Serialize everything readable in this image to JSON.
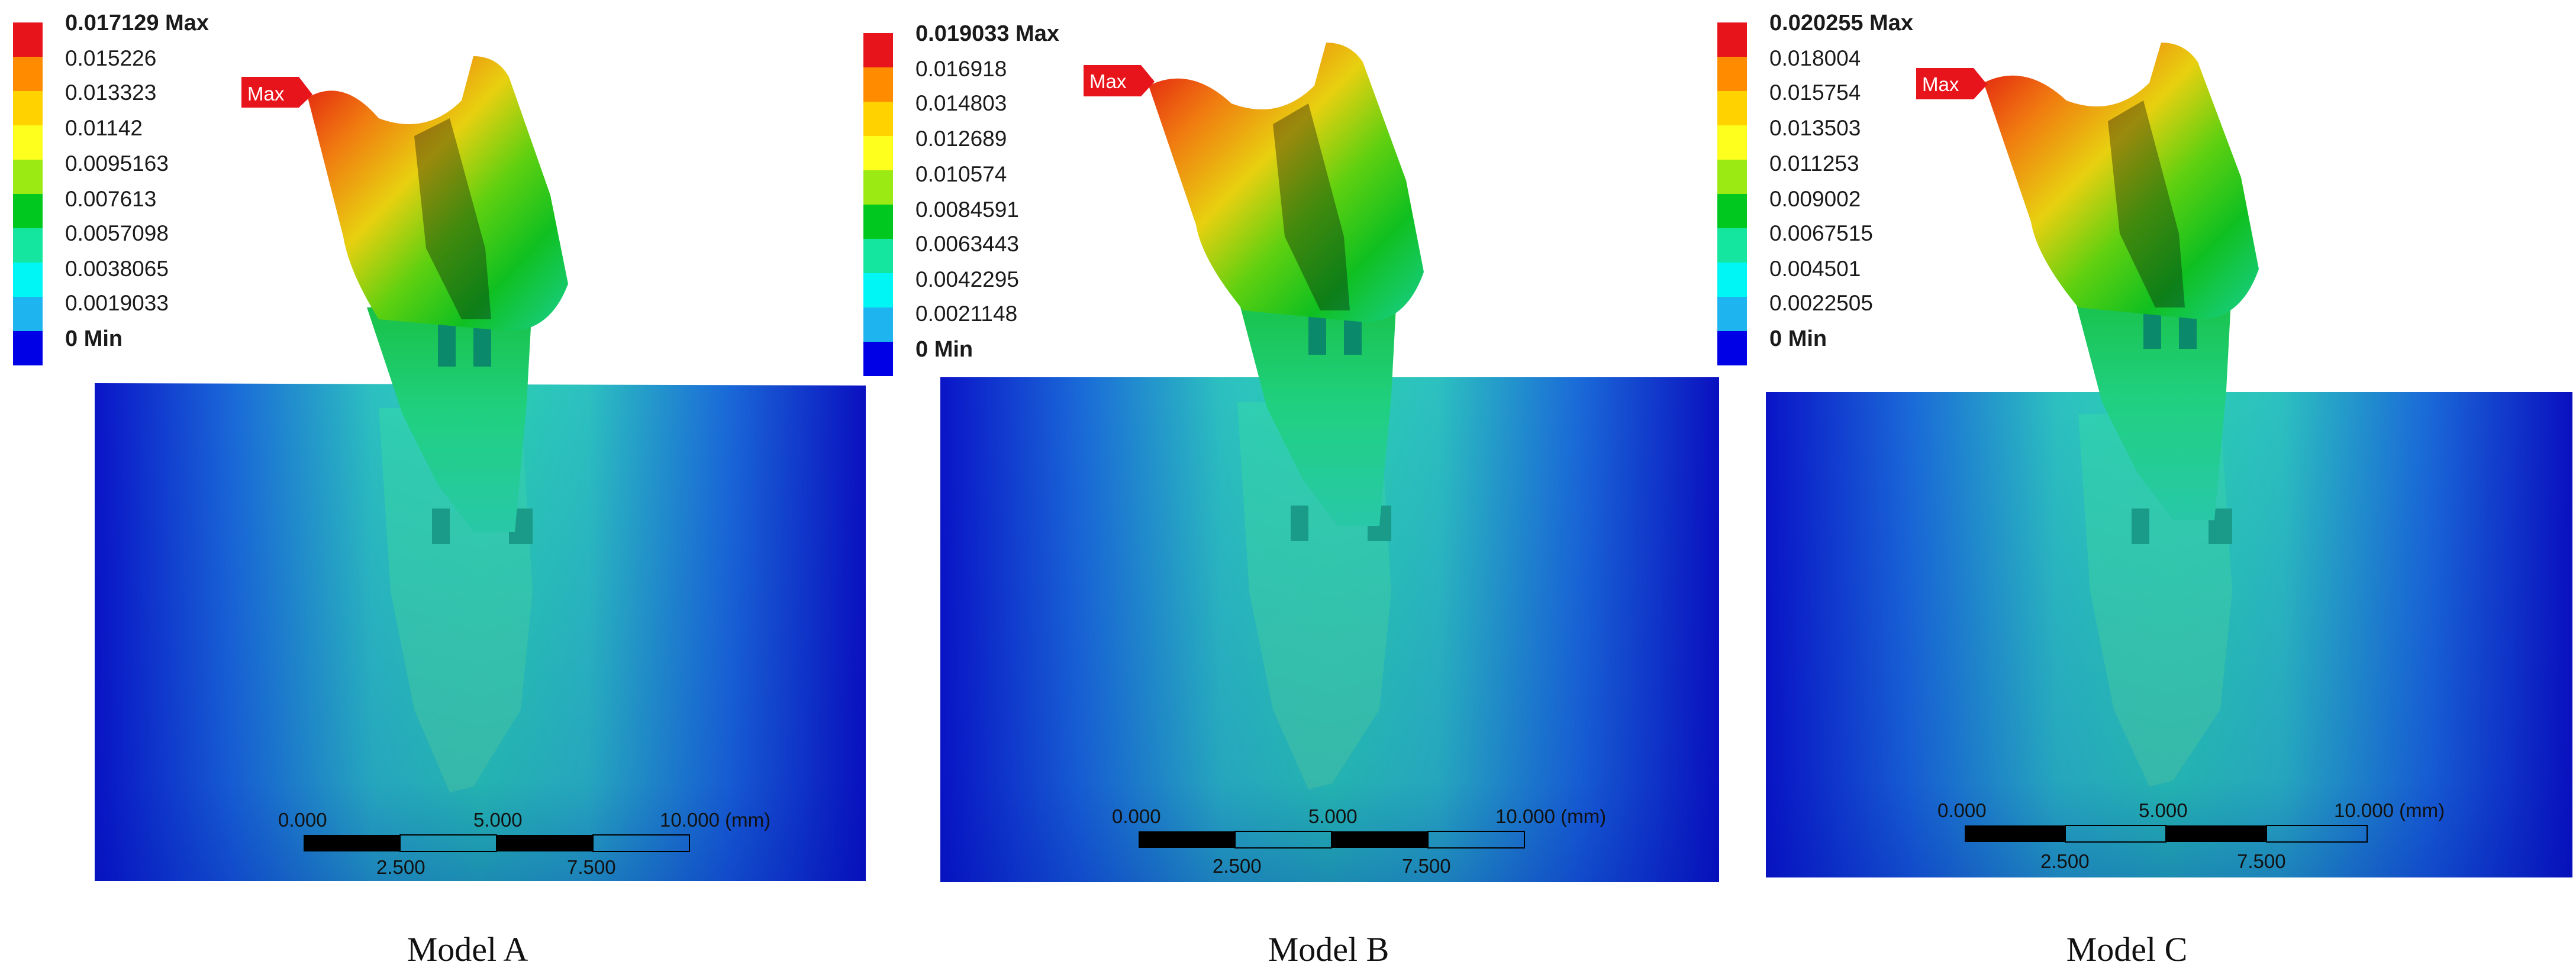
{
  "figure": "Total deformation contour plots",
  "max_tag": "Max",
  "colors": {
    "legend": [
      "#e8141c",
      "#ff8c00",
      "#ffd200",
      "#ffff1e",
      "#9bea14",
      "#00c81e",
      "#14e6a0",
      "#00f5f5",
      "#1eb4f0",
      "#0000e6"
    ]
  },
  "scale_bar": {
    "top_labels": [
      "0.000",
      "5.000",
      "10.000 (mm)"
    ],
    "bottom_labels": [
      "2.500",
      "7.500"
    ]
  },
  "models": [
    {
      "caption": "Model A",
      "legend_top": "0.017129 Max",
      "legend_values": [
        "0.015226",
        "0.013323",
        "0.01142",
        "0.0095163",
        "0.007613",
        "0.0057098",
        "0.0038065",
        "0.0019033"
      ],
      "legend_bottom": "0 Min"
    },
    {
      "caption": "Model B",
      "legend_top": "0.019033 Max",
      "legend_values": [
        "0.016918",
        "0.014803",
        "0.012689",
        "0.010574",
        "0.0084591",
        "0.0063443",
        "0.0042295",
        "0.0021148"
      ],
      "legend_bottom": "0 Min"
    },
    {
      "caption": "Model C",
      "legend_top": "0.020255 Max",
      "legend_values": [
        "0.018004",
        "0.015754",
        "0.013503",
        "0.011253",
        "0.009002",
        "0.0067515",
        "0.004501",
        "0.0022505"
      ],
      "legend_bottom": "0 Min"
    }
  ]
}
